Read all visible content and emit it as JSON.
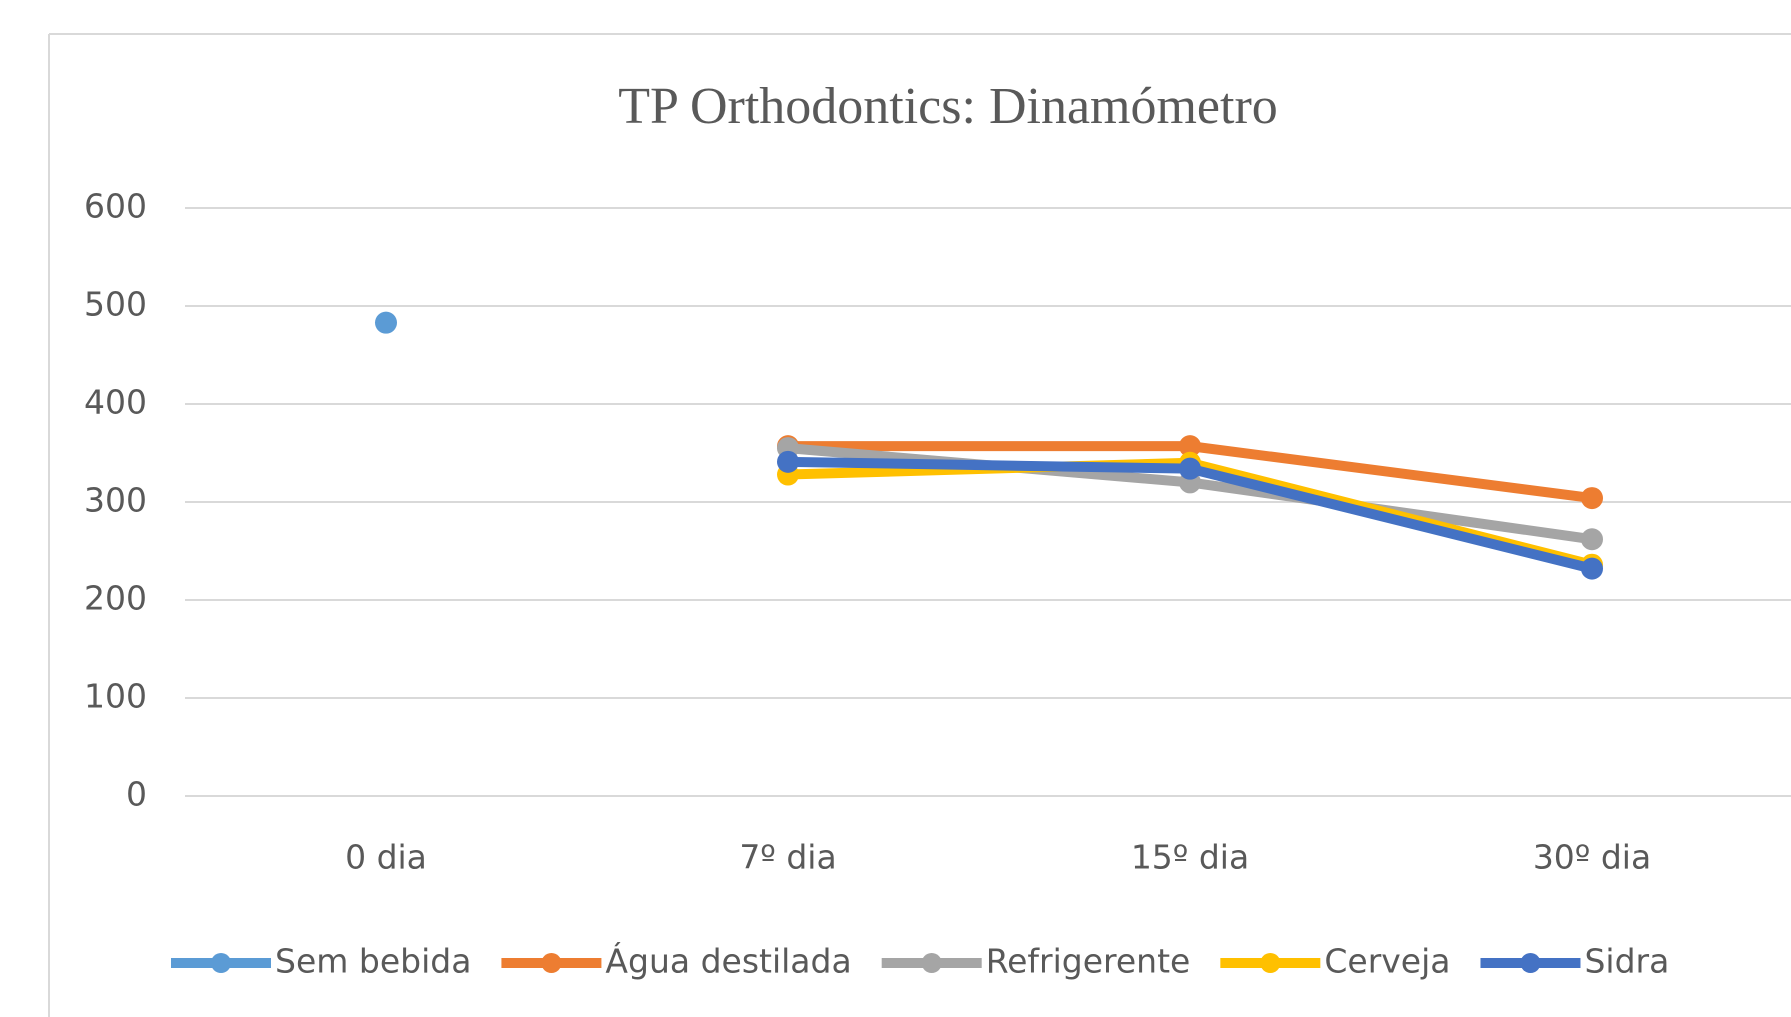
{
  "chart_data": {
    "type": "line",
    "title": "TP Orthodontics: Dinamómetro",
    "categories": [
      "0 dia",
      "7º dia",
      "15º dia",
      "30º dia"
    ],
    "series": [
      {
        "name": "Sem bebida",
        "color": "#5b9bd5",
        "values": [
          483,
          null,
          null,
          null
        ]
      },
      {
        "name": "Água destilada",
        "color": "#ed7d31",
        "values": [
          null,
          357,
          357,
          304
        ]
      },
      {
        "name": "Refrigerente",
        "color": "#a5a5a5",
        "values": [
          null,
          355,
          320,
          262
        ]
      },
      {
        "name": "Cerveja",
        "color": "#ffc000",
        "values": [
          null,
          328,
          340,
          236
        ]
      },
      {
        "name": "Sidra",
        "color": "#4472c4",
        "values": [
          null,
          341,
          334,
          232
        ]
      }
    ],
    "ylim": [
      0,
      600
    ],
    "yticks": [
      0,
      100,
      200,
      300,
      400,
      500,
      600
    ],
    "grid": true,
    "legend": "bottom"
  }
}
